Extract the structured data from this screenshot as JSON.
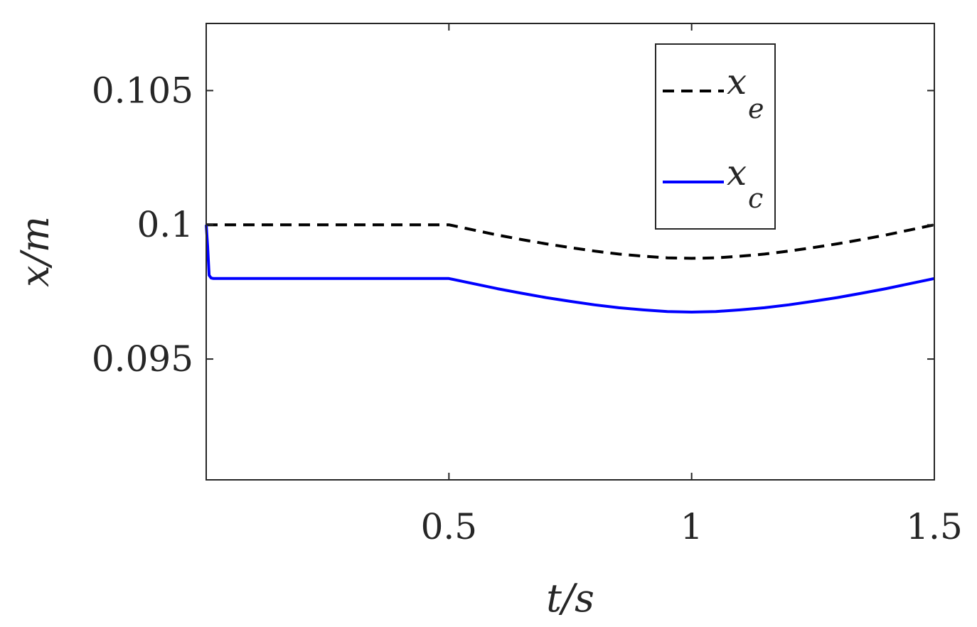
{
  "chart_data": {
    "type": "line",
    "title": "",
    "xlabel": "t/s",
    "ylabel": "x/m",
    "xlim": [
      0,
      1.5
    ],
    "ylim": [
      0.0905,
      0.1075
    ],
    "xticks": [
      0.5,
      1,
      1.5
    ],
    "xtick_labels": [
      "0.5",
      "1",
      "1.5"
    ],
    "yticks": [
      0.095,
      0.1,
      0.105
    ],
    "ytick_labels": [
      "0.095",
      "0.1",
      "0.105"
    ],
    "grid": false,
    "legend_position": "top-right",
    "series": [
      {
        "name_main": "x",
        "name_sub": "e",
        "color": "#000000",
        "style": "dashed",
        "x": [
          0,
          0.5,
          0.55,
          0.6,
          0.65,
          0.7,
          0.75,
          0.8,
          0.85,
          0.9,
          0.95,
          1.0,
          1.05,
          1.1,
          1.15,
          1.2,
          1.25,
          1.3,
          1.35,
          1.4,
          1.45,
          1.5
        ],
        "y": [
          0.1,
          0.1,
          0.09981,
          0.09962,
          0.09945,
          0.09929,
          0.09915,
          0.09902,
          0.09891,
          0.09883,
          0.09877,
          0.09875,
          0.09877,
          0.09883,
          0.09891,
          0.09902,
          0.09915,
          0.09929,
          0.09945,
          0.09962,
          0.09981,
          0.1
        ]
      },
      {
        "name_main": "x",
        "name_sub": "c",
        "color": "#0000ff",
        "style": "solid",
        "x": [
          0,
          0.003,
          0.006,
          0.01,
          0.015,
          0.5,
          0.55,
          0.6,
          0.65,
          0.7,
          0.75,
          0.8,
          0.85,
          0.9,
          0.95,
          1.0,
          1.05,
          1.1,
          1.15,
          1.2,
          1.25,
          1.3,
          1.35,
          1.4,
          1.45,
          1.5
        ],
        "y": [
          0.1,
          0.0992,
          0.09812,
          0.09802,
          0.098,
          0.098,
          0.09781,
          0.09762,
          0.09745,
          0.09729,
          0.09715,
          0.09702,
          0.09691,
          0.09683,
          0.09677,
          0.09675,
          0.09677,
          0.09683,
          0.09691,
          0.09702,
          0.09715,
          0.09729,
          0.09745,
          0.09762,
          0.09781,
          0.098
        ]
      }
    ]
  }
}
